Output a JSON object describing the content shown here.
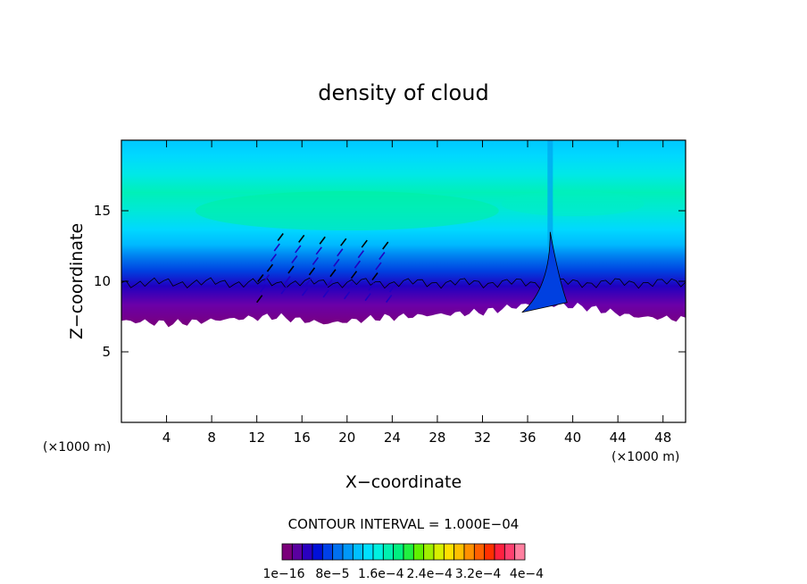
{
  "chart_data": {
    "type": "heatmap",
    "title": "density of cloud",
    "xlabel": "X−coordinate",
    "ylabel": "Z−coordinate",
    "x_unit": "(×1000 m)",
    "y_unit": "(×1000 m)",
    "xlim": [
      0,
      50
    ],
    "ylim": [
      0,
      20
    ],
    "x_ticks": [
      4,
      8,
      12,
      16,
      20,
      24,
      28,
      32,
      36,
      40,
      44,
      48
    ],
    "y_ticks": [
      5,
      10,
      15
    ],
    "contour_interval_label": "CONTOUR INTERVAL = 1.000E−04",
    "colorbar_labels": [
      "1e−16",
      "8e−5",
      "1.6e−4",
      "2.4e−4",
      "3.2e−4",
      "4e−4"
    ],
    "colorbar_colors": [
      "#7a007a",
      "#5a00a0",
      "#2a00c0",
      "#0010d8",
      "#0040e8",
      "#0070f0",
      "#0098f8",
      "#00c0ff",
      "#00e0ff",
      "#00f0e0",
      "#00f0b0",
      "#00f080",
      "#20f040",
      "#60f000",
      "#a0f000",
      "#d8f000",
      "#ffe000",
      "#ffc000",
      "#ff9000",
      "#ff6000",
      "#ff3000",
      "#ff2040",
      "#ff4070",
      "#ff80a0"
    ],
    "cloud_base_km": [
      7.2,
      7.0,
      7.3,
      7.5,
      7.0,
      7.4,
      7.6,
      7.8,
      8.4,
      8.2,
      7.5,
      7.3
    ],
    "cloud_top_km": 20,
    "updraft_x_km": 38
  }
}
